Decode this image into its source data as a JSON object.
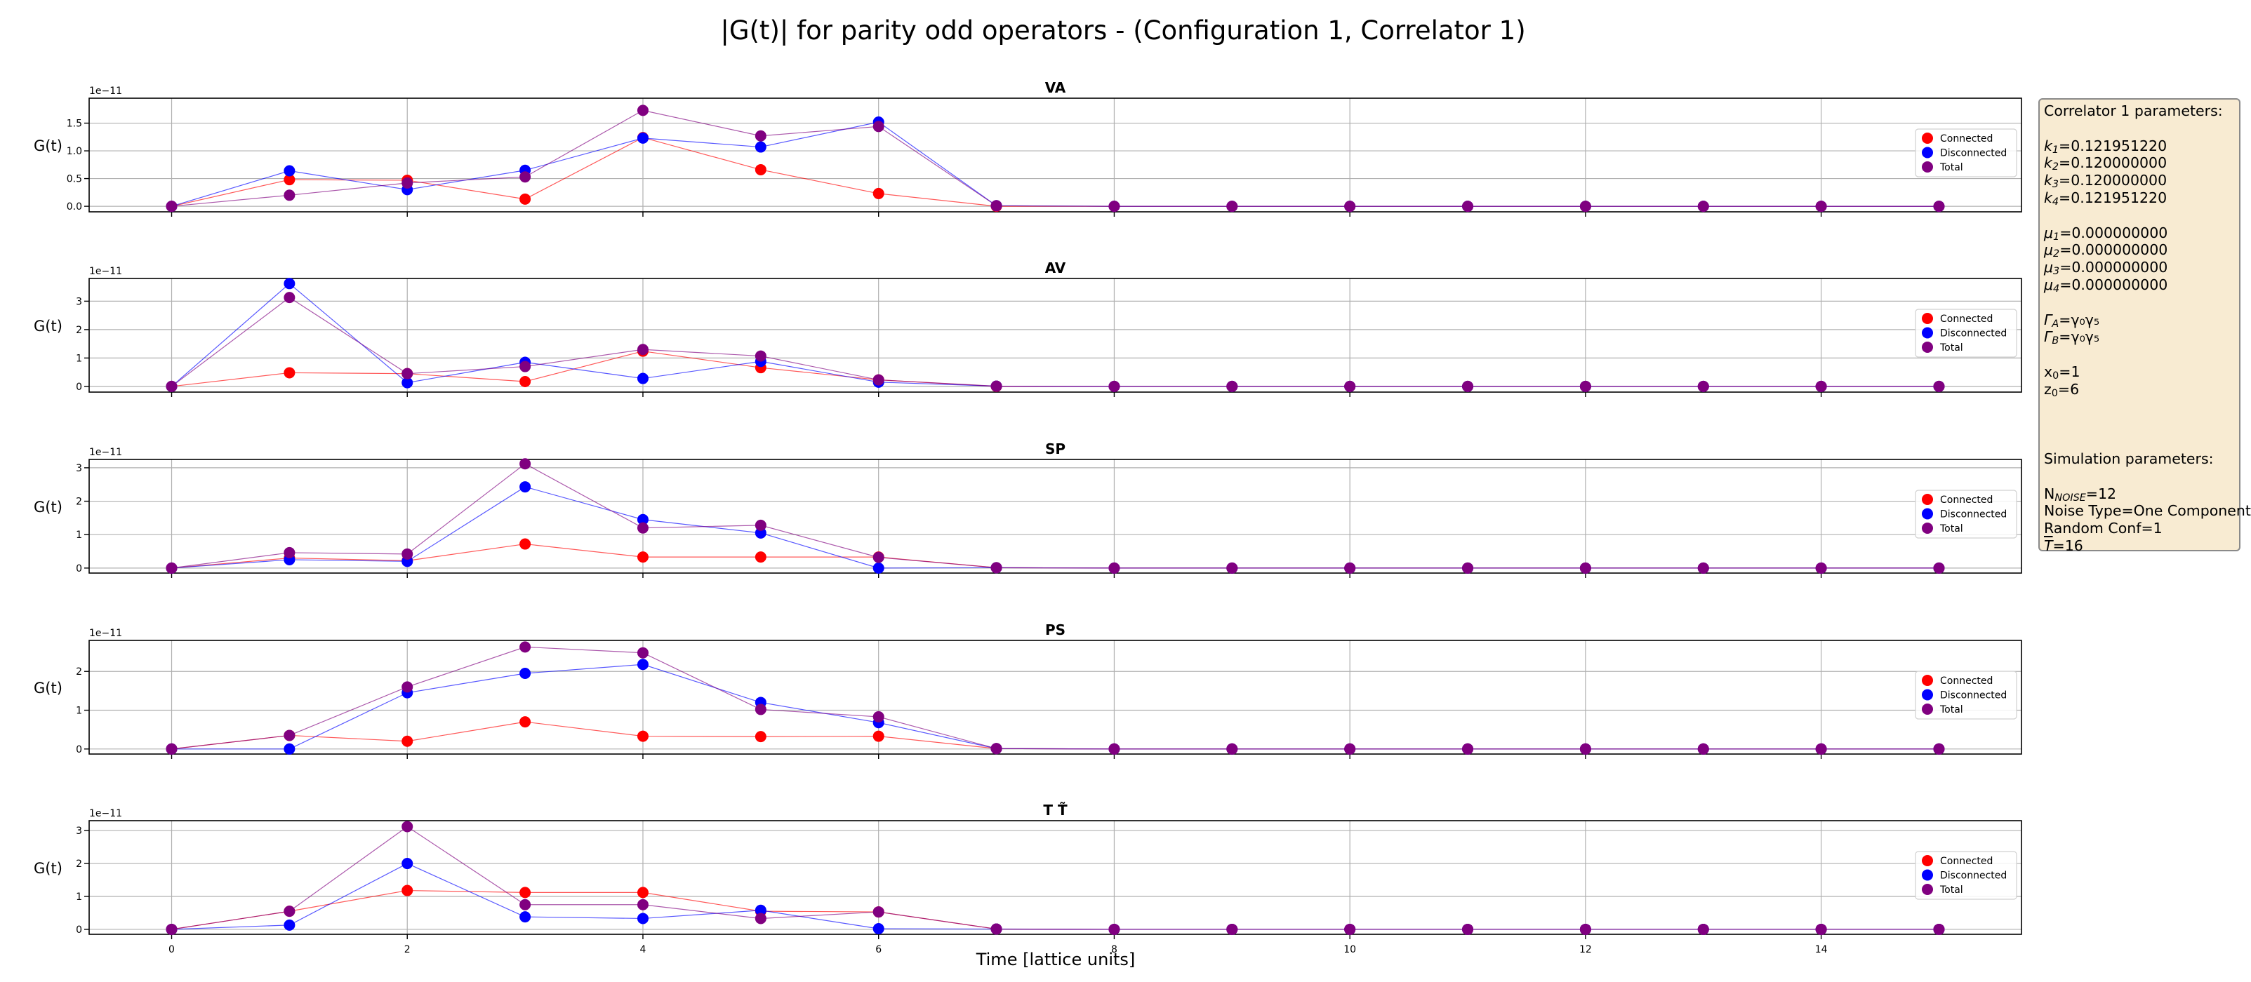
{
  "figure": {
    "title": "|G(t)| for parity odd operators - (Configuration 1, Correlator 1)",
    "xlabel": "Time [lattice units]"
  },
  "colors": {
    "Connected": "#ff0000",
    "Disconnected": "#0000ff",
    "Total": "#800080"
  },
  "info_box": {
    "lines": [
      {
        "t": "Correlator 1 parameters:"
      },
      {
        "t": ""
      },
      {
        "b": "k",
        "s": "1",
        "a": "=0.121951220"
      },
      {
        "b": "k",
        "s": "2",
        "a": "=0.120000000"
      },
      {
        "b": "k",
        "s": "3",
        "a": "=0.120000000"
      },
      {
        "b": "k",
        "s": "4",
        "a": "=0.121951220"
      },
      {
        "t": ""
      },
      {
        "b": "μ",
        "s": "1",
        "a": "=0.000000000"
      },
      {
        "b": "μ",
        "s": "2",
        "a": "=0.000000000"
      },
      {
        "b": "μ",
        "s": "3",
        "a": "=0.000000000"
      },
      {
        "b": "μ",
        "s": "4",
        "a": "=0.000000000"
      },
      {
        "t": ""
      },
      {
        "b": "Γ",
        "s": "A",
        "a": "=γ₀γ₅"
      },
      {
        "b": "Γ",
        "s": "B",
        "a": "=γ₀γ₅"
      },
      {
        "t": ""
      },
      {
        "b": "x",
        "s": "0",
        "a": "=1"
      },
      {
        "b": "z",
        "s": "0",
        "a": "=6"
      },
      {
        "t": ""
      },
      {
        "t": ""
      },
      {
        "t": ""
      },
      {
        "t": "Simulation parameters:"
      },
      {
        "t": ""
      },
      {
        "b": "N",
        "s": "NOISE",
        "a": "=12"
      },
      {
        "t": "Noise Type=One Component"
      },
      {
        "t": "Random Conf=1"
      },
      {
        "b": "T",
        "s": "",
        "a": "=16"
      }
    ]
  },
  "chart_data": [
    {
      "type": "line",
      "title": "VA",
      "ylabel": "G(t)",
      "scale_label": "1e−11",
      "x": [
        0,
        1,
        2,
        3,
        4,
        5,
        6,
        7,
        8,
        9,
        10,
        11,
        12,
        13,
        14,
        15
      ],
      "ylim": [
        -0.1,
        1.95
      ],
      "yticks": [
        0.0,
        0.5,
        1.0,
        1.5
      ],
      "yticklabels": [
        "0.0",
        "0.5",
        "1.0",
        "1.5"
      ],
      "xticks": [
        0,
        2,
        4,
        6,
        8,
        10,
        12,
        14
      ],
      "legend": "right",
      "grid": true,
      "series": [
        {
          "name": "Connected",
          "values": [
            0,
            0.48,
            0.47,
            0.13,
            1.24,
            0.66,
            0.23,
            0,
            0,
            0,
            0,
            0,
            0,
            0,
            0,
            0
          ]
        },
        {
          "name": "Disconnected",
          "values": [
            0,
            0.64,
            0.3,
            0.65,
            1.23,
            1.07,
            1.52,
            0.01,
            0,
            0,
            0,
            0,
            0,
            0,
            0,
            0
          ]
        },
        {
          "name": "Total",
          "values": [
            0,
            0.2,
            0.42,
            0.53,
            1.73,
            1.27,
            1.44,
            0.01,
            0,
            0,
            0,
            0,
            0,
            0,
            0,
            0
          ]
        }
      ]
    },
    {
      "type": "line",
      "title": "AV",
      "ylabel": "G(t)",
      "scale_label": "1e−11",
      "x": [
        0,
        1,
        2,
        3,
        4,
        5,
        6,
        7,
        8,
        9,
        10,
        11,
        12,
        13,
        14,
        15
      ],
      "ylim": [
        -0.2,
        3.8
      ],
      "yticks": [
        0,
        1,
        2,
        3
      ],
      "yticklabels": [
        "0",
        "1",
        "2",
        "3"
      ],
      "xticks": [
        0,
        2,
        4,
        6,
        8,
        10,
        12,
        14
      ],
      "legend": "right",
      "grid": true,
      "series": [
        {
          "name": "Connected",
          "values": [
            0,
            0.48,
            0.45,
            0.17,
            1.24,
            0.66,
            0.23,
            0,
            0,
            0,
            0,
            0,
            0,
            0,
            0,
            0
          ]
        },
        {
          "name": "Disconnected",
          "values": [
            0,
            3.62,
            0.13,
            0.85,
            0.28,
            0.88,
            0.15,
            0.01,
            0,
            0,
            0,
            0,
            0,
            0,
            0,
            0
          ]
        },
        {
          "name": "Total",
          "values": [
            0,
            3.13,
            0.45,
            0.7,
            1.3,
            1.07,
            0.23,
            0.01,
            0,
            0,
            0,
            0,
            0,
            0,
            0,
            0
          ]
        }
      ]
    },
    {
      "type": "line",
      "title": "SP",
      "ylabel": "G(t)",
      "scale_label": "1e−11",
      "x": [
        0,
        1,
        2,
        3,
        4,
        5,
        6,
        7,
        8,
        9,
        10,
        11,
        12,
        13,
        14,
        15
      ],
      "ylim": [
        -0.15,
        3.25
      ],
      "yticks": [
        0,
        1,
        2,
        3
      ],
      "yticklabels": [
        "0",
        "1",
        "2",
        "3"
      ],
      "xticks": [
        0,
        2,
        4,
        6,
        8,
        10,
        12,
        14
      ],
      "legend": "right",
      "grid": true,
      "series": [
        {
          "name": "Connected",
          "values": [
            0,
            0.3,
            0.22,
            0.72,
            0.33,
            0.33,
            0.33,
            0.01,
            0,
            0,
            0,
            0,
            0,
            0,
            0,
            0
          ]
        },
        {
          "name": "Disconnected",
          "values": [
            0,
            0.25,
            0.2,
            2.43,
            1.45,
            1.05,
            0,
            0.01,
            0,
            0,
            0,
            0,
            0,
            0,
            0,
            0
          ]
        },
        {
          "name": "Total",
          "values": [
            0,
            0.46,
            0.42,
            3.12,
            1.2,
            1.28,
            0.32,
            0.01,
            0,
            0,
            0,
            0,
            0,
            0,
            0,
            0
          ]
        }
      ]
    },
    {
      "type": "line",
      "title": "PS",
      "ylabel": "G(t)",
      "scale_label": "1e−11",
      "x": [
        0,
        1,
        2,
        3,
        4,
        5,
        6,
        7,
        8,
        9,
        10,
        11,
        12,
        13,
        14,
        15
      ],
      "ylim": [
        -0.13,
        2.8
      ],
      "yticks": [
        0,
        1,
        2
      ],
      "yticklabels": [
        "0",
        "1",
        "2"
      ],
      "xticks": [
        0,
        2,
        4,
        6,
        8,
        10,
        12,
        14
      ],
      "legend": "right",
      "grid": true,
      "series": [
        {
          "name": "Connected",
          "values": [
            0,
            0.35,
            0.2,
            0.7,
            0.33,
            0.32,
            0.33,
            0.01,
            0,
            0,
            0,
            0,
            0,
            0,
            0,
            0
          ]
        },
        {
          "name": "Disconnected",
          "values": [
            0,
            0,
            1.45,
            1.95,
            2.18,
            1.2,
            0.68,
            0.01,
            0,
            0,
            0,
            0,
            0,
            0,
            0,
            0
          ]
        },
        {
          "name": "Total",
          "values": [
            0,
            0.35,
            1.6,
            2.63,
            2.48,
            1.02,
            0.83,
            0.01,
            0,
            0,
            0,
            0,
            0,
            0,
            0,
            0
          ]
        }
      ]
    },
    {
      "type": "line",
      "title": "T T̃",
      "ylabel": "G(t)",
      "scale_label": "1e−11",
      "x": [
        0,
        1,
        2,
        3,
        4,
        5,
        6,
        7,
        8,
        9,
        10,
        11,
        12,
        13,
        14,
        15
      ],
      "ylim": [
        -0.15,
        3.3
      ],
      "yticks": [
        0,
        1,
        2,
        3
      ],
      "yticklabels": [
        "0",
        "1",
        "2",
        "3"
      ],
      "xticks": [
        0,
        2,
        4,
        6,
        8,
        10,
        12,
        14
      ],
      "legend": "right",
      "grid": true,
      "series": [
        {
          "name": "Connected",
          "values": [
            0,
            0.55,
            1.18,
            1.12,
            1.12,
            0.55,
            0.53,
            0.01,
            0,
            0,
            0,
            0,
            0,
            0,
            0,
            0
          ]
        },
        {
          "name": "Disconnected",
          "values": [
            0,
            0.13,
            2.0,
            0.38,
            0.33,
            0.58,
            0.02,
            0.01,
            0,
            0,
            0,
            0,
            0,
            0,
            0,
            0
          ]
        },
        {
          "name": "Total",
          "values": [
            0,
            0.55,
            3.12,
            0.75,
            0.75,
            0.33,
            0.53,
            0.01,
            0,
            0,
            0,
            0,
            0,
            0,
            0,
            0
          ]
        }
      ]
    }
  ]
}
